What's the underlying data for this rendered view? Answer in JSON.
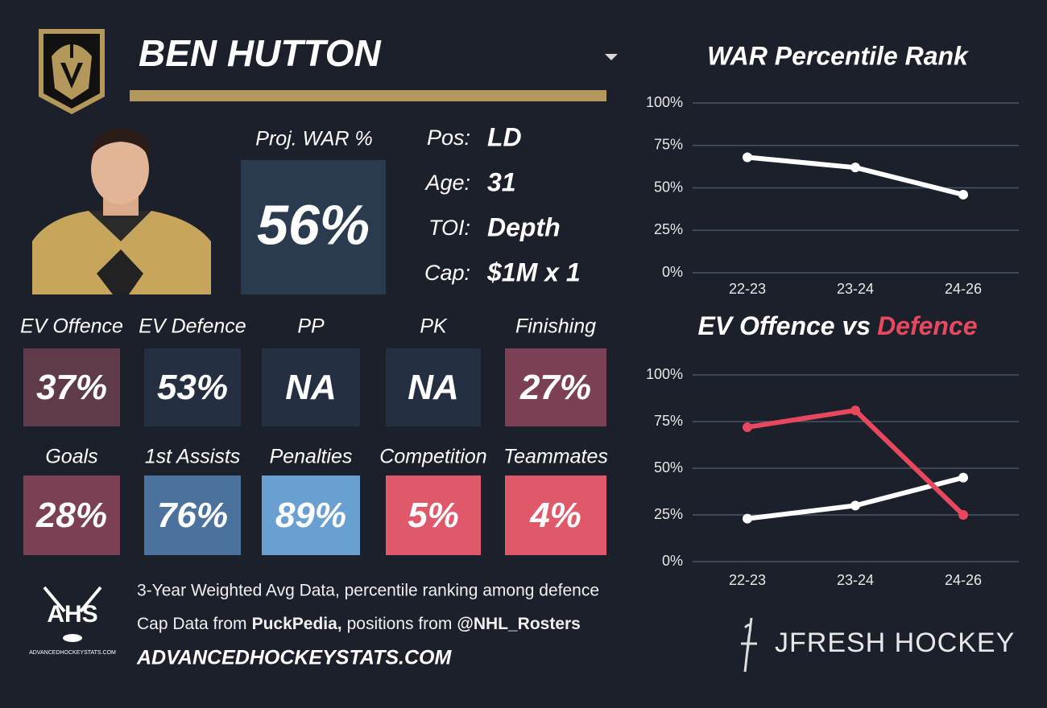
{
  "header": {
    "player_name": "BEN HUTTON"
  },
  "projection": {
    "label": "Proj. WAR %",
    "value": "56%"
  },
  "info": [
    {
      "label": "Pos:",
      "value": "LD"
    },
    {
      "label": "Age:",
      "value": "31"
    },
    {
      "label": "TOI:",
      "value": "Depth"
    },
    {
      "label": "Cap:",
      "value": "$1M x 1"
    }
  ],
  "tiles": [
    {
      "label": "EV Offence",
      "value": "37%",
      "color": "#5e3a4b"
    },
    {
      "label": "EV Defence",
      "value": "53%",
      "color": "#243042"
    },
    {
      "label": "PP",
      "value": "NA",
      "color": "#243042"
    },
    {
      "label": "PK",
      "value": "NA",
      "color": "#243042"
    },
    {
      "label": "Finishing",
      "value": "27%",
      "color": "#7b4053"
    },
    {
      "label": "Goals",
      "value": "28%",
      "color": "#7b4053"
    },
    {
      "label": "1st Assists",
      "value": "76%",
      "color": "#4a729c"
    },
    {
      "label": "Penalties",
      "value": "89%",
      "color": "#6a9fd2"
    },
    {
      "label": "Competition",
      "value": "5%",
      "color": "#e0596b"
    },
    {
      "label": "Teammates",
      "value": "4%",
      "color": "#e0596b"
    }
  ],
  "footer": {
    "logo_text": "AHS",
    "logo_caption": "ADVANCEDHOCKEYSTATS.COM",
    "line1": "3-Year Weighted Avg Data, percentile ranking among defence",
    "line2": [
      "Cap Data from",
      "PuckPedia,",
      "positions from",
      "@NHL_Rosters"
    ],
    "website": "ADVANCEDHOCKEYSTATS.COM",
    "brand": "JFRESH HOCKEY"
  },
  "chart_data": [
    {
      "type": "line",
      "title": "WAR Percentile Rank",
      "categories": [
        "22-23",
        "23-24",
        "24-26"
      ],
      "series": [
        {
          "color": "#ffffff",
          "values": [
            68,
            62,
            46
          ]
        }
      ],
      "ylim": [
        0,
        100
      ],
      "yticks": [
        {
          "value": 0,
          "label": "0%"
        },
        {
          "value": 25,
          "label": "25%"
        },
        {
          "value": 50,
          "label": "50%"
        },
        {
          "value": 75,
          "label": "75%"
        },
        {
          "value": 100,
          "label": "100%"
        }
      ],
      "grid": true
    },
    {
      "type": "line",
      "title_parts": [
        "EV Offence vs",
        "Defence"
      ],
      "title_colors": [
        "#ffffff",
        "#e8485e"
      ],
      "categories": [
        "22-23",
        "23-24",
        "24-26"
      ],
      "series": [
        {
          "color": "#ffffff",
          "values": [
            23,
            30,
            45
          ]
        },
        {
          "color": "#e8485e",
          "values": [
            72,
            81,
            25
          ]
        }
      ],
      "ylim": [
        0,
        100
      ],
      "yticks": [
        {
          "value": 0,
          "label": "0%"
        },
        {
          "value": 25,
          "label": "25%"
        },
        {
          "value": 50,
          "label": "50%"
        },
        {
          "value": 75,
          "label": "75%"
        },
        {
          "value": 100,
          "label": "100%"
        }
      ],
      "grid": true
    }
  ]
}
